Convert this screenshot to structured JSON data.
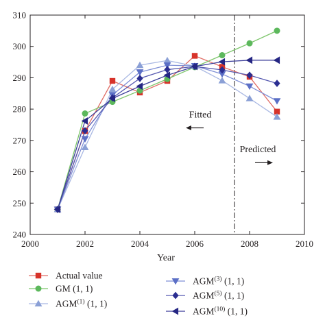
{
  "chart_data": {
    "type": "line",
    "xlabel": "Year",
    "ylabel": "",
    "xlim": [
      2000,
      2010
    ],
    "ylim": [
      240,
      310
    ],
    "xticks": [
      2000,
      2002,
      2004,
      2006,
      2008,
      2010
    ],
    "yticks": [
      240,
      250,
      260,
      270,
      280,
      290,
      300,
      310
    ],
    "grid": false,
    "x": [
      2001,
      2002,
      2003,
      2004,
      2005,
      2006,
      2007,
      2008,
      2009
    ],
    "divider_x": 2007.45,
    "annotations": [
      {
        "text": "Fitted",
        "arrow": "left",
        "x": 2006.2,
        "y": 277.3
      },
      {
        "text": "Predicted",
        "arrow": "right",
        "x": 2008.3,
        "y": 266.2
      }
    ],
    "series": [
      {
        "name": "Actual value",
        "color": "#d7332a",
        "line": "#e06b63",
        "marker": "square",
        "values": [
          248,
          273,
          289,
          285.3,
          289,
          297,
          293.5,
          290.3,
          279.2
        ]
      },
      {
        "name": "GM (1, 1)",
        "color": "#5cb85c",
        "line": "#7cc56a",
        "marker": "circle",
        "values": [
          248,
          278.6,
          282.3,
          285.9,
          289.6,
          293.4,
          297.2,
          301,
          305
        ]
      },
      {
        "name": "AGM(1) (1, 1)",
        "sup": "(1)",
        "color": "#8ba0d6",
        "line": "#a9b8e3",
        "marker": "triangle-up",
        "values": [
          248,
          267.8,
          286.3,
          294,
          295.5,
          293.7,
          289.1,
          283.4,
          277.5
        ]
      },
      {
        "name": "AGM(3) (1, 1)",
        "sup": "(3)",
        "color": "#5b6fc6",
        "line": "#7f8fd6",
        "marker": "triangle-down",
        "values": [
          248,
          270.5,
          284.5,
          291.8,
          294,
          293.8,
          291.2,
          287.3,
          282.6
        ]
      },
      {
        "name": "AGM(5) (1, 1)",
        "sup": "(5)",
        "color": "#2b2e91",
        "line": "#5558b0",
        "marker": "diamond",
        "values": [
          248,
          273.1,
          283.6,
          289.8,
          292.6,
          293.6,
          292.5,
          290.8,
          288.2
        ]
      },
      {
        "name": "AGM(10) (1, 1)",
        "sup": "(10)",
        "color": "#252683",
        "line": "#3d3f9a",
        "marker": "triangle-left",
        "values": [
          248,
          276.2,
          283.4,
          287.3,
          290.8,
          293.6,
          295.1,
          295.6,
          295.6
        ]
      }
    ]
  },
  "legend": [
    {
      "base": "Actual value",
      "sup": "",
      "suffix": ""
    },
    {
      "base": "GM (1, 1)",
      "sup": "",
      "suffix": ""
    },
    {
      "base": "AGM",
      "sup": "(1)",
      "suffix": " (1, 1)"
    },
    {
      "base": "AGM",
      "sup": "(3)",
      "suffix": " (1, 1)"
    },
    {
      "base": "AGM",
      "sup": "(5)",
      "suffix": " (1, 1)"
    },
    {
      "base": "AGM",
      "sup": "(10)",
      "suffix": " (1, 1)"
    }
  ]
}
